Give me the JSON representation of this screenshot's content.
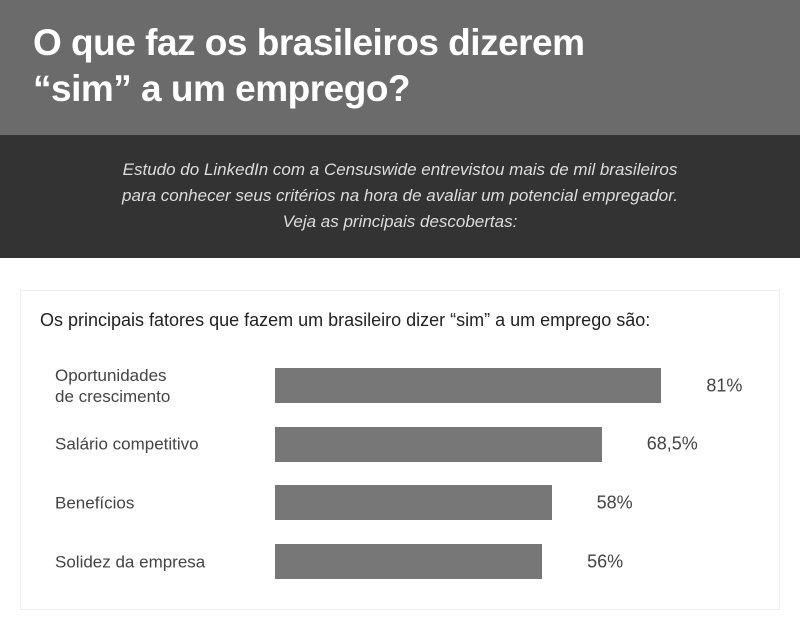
{
  "header": {
    "title": "O que faz os brasileiros dizerem\n“sim” a um emprego?",
    "subtitle": "Estudo do LinkedIn com a Censuswide entrevistou mais de mil brasileiros\npara conhecer seus critérios na hora de avaliar um potencial empregador.\nVeja as principais descobertas:"
  },
  "chart_data": {
    "type": "bar",
    "orientation": "horizontal",
    "title": "Os principais fatores que fazem um brasileiro dizer “sim” a um emprego são:",
    "categories": [
      "Oportunidades\nde crescimento",
      "Salário competitivo",
      "Benefícios",
      "Solidez da empresa"
    ],
    "values": [
      81,
      68.5,
      58,
      56
    ],
    "value_labels": [
      "81%",
      "68,5%",
      "58%",
      "56%"
    ],
    "color": "#777777"
  }
}
